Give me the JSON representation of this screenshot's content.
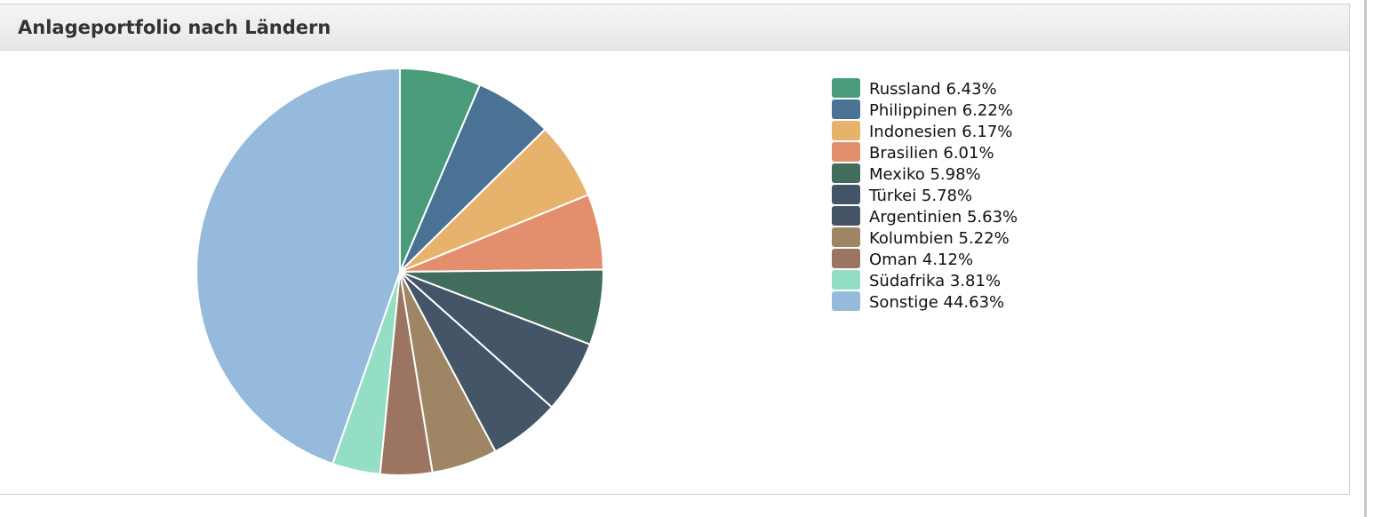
{
  "panel": {
    "title": "Anlageportfolio nach Ländern"
  },
  "chart_data": {
    "type": "pie",
    "title": "",
    "legend_position": "right",
    "unit": "%",
    "slices": [
      {
        "label": "Russland",
        "value": 6.43,
        "color": "#4a9b7a"
      },
      {
        "label": "Philippinen",
        "value": 6.22,
        "color": "#4a7294"
      },
      {
        "label": "Indonesien",
        "value": 6.17,
        "color": "#e7b26c"
      },
      {
        "label": "Brasilien",
        "value": 6.01,
        "color": "#e38f6d"
      },
      {
        "label": "Mexiko",
        "value": 5.98,
        "color": "#426c5b"
      },
      {
        "label": "Türkei",
        "value": 5.78,
        "color": "#435567"
      },
      {
        "label": "Argentinien",
        "value": 5.63,
        "color": "#435567"
      },
      {
        "label": "Kolumbien",
        "value": 5.22,
        "color": "#9e8563"
      },
      {
        "label": "Oman",
        "value": 4.12,
        "color": "#9b7562"
      },
      {
        "label": "Südafrika",
        "value": 3.81,
        "color": "#93dec4"
      },
      {
        "label": "Sonstige",
        "value": 44.63,
        "color": "#95badc"
      }
    ]
  }
}
